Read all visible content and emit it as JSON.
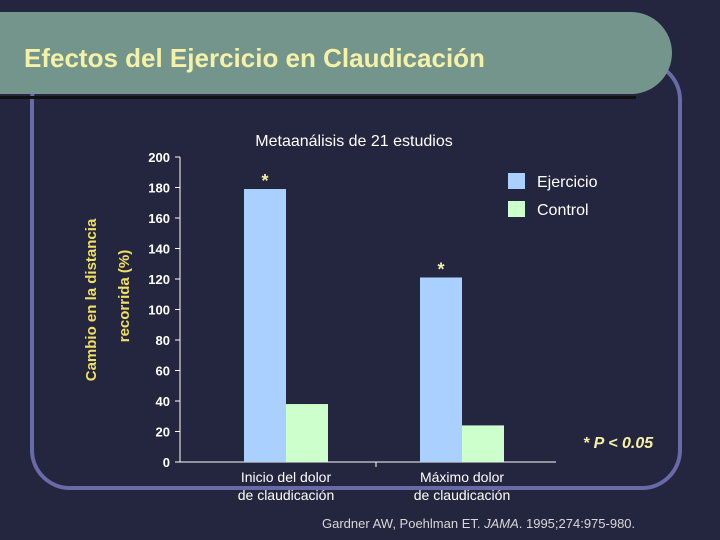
{
  "slide": {
    "title": "Efectos del Ejercicio en Claudicación",
    "footer_prefix": "Gardner AW, Poehlman ET. ",
    "footer_journal": "JAMA",
    "footer_suffix": ". 1995;274:975-980."
  },
  "colors": {
    "background": "#24253f",
    "banner": "#73958c",
    "frame": "#6a6aa8",
    "title": "#f5f2a8",
    "ylabel": "#f0e060",
    "ejercicio": "#a9d0ff",
    "control": "#ccffcc"
  },
  "chart_data": {
    "type": "bar",
    "title": "Metaanálisis de 21 estudios",
    "ylabel": [
      "Cambio en la distancia",
      "recorrida (%)"
    ],
    "xlabel": "",
    "categories": [
      [
        "Inicio del dolor",
        "de claudicación"
      ],
      [
        "Máximo dolor",
        "de claudicación"
      ]
    ],
    "series": [
      {
        "name": "Ejercicio",
        "values": [
          179,
          121
        ]
      },
      {
        "name": "Control",
        "values": [
          38,
          24
        ]
      }
    ],
    "ylim": [
      0,
      200
    ],
    "yticks": [
      0,
      20,
      40,
      60,
      80,
      100,
      120,
      140,
      160,
      180,
      200
    ],
    "significance_marker": "*",
    "significant_bars": [
      [
        0,
        0
      ],
      [
        0,
        1
      ]
    ],
    "annotation": "* P < 0.05",
    "legend_position": "top-right",
    "grid": false
  }
}
